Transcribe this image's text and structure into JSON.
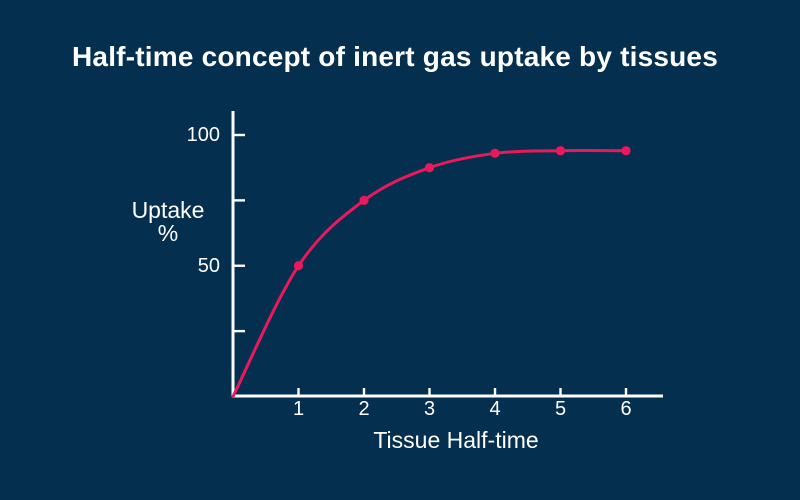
{
  "colors": {
    "background": "#052f4e",
    "curve": "#e9195b",
    "axis": "#fbfdfe",
    "text": "#ffffff"
  },
  "chart_data": {
    "type": "line",
    "title": "Half-time concept of inert gas uptake by tissues",
    "xlabel": "Tissue Half-time",
    "ylabel": "Uptake %",
    "ylabel_lines": [
      "Uptake",
      "%"
    ],
    "x": [
      0,
      1,
      2,
      3,
      4,
      5,
      6
    ],
    "values": [
      0,
      50,
      75,
      87.5,
      93,
      94,
      94
    ],
    "series": [
      {
        "name": "Inert gas uptake",
        "x": [
          0,
          1,
          2,
          3,
          4,
          5,
          6
        ],
        "values": [
          0,
          50,
          75,
          87.5,
          93,
          94,
          94
        ]
      }
    ],
    "x_ticks": [
      "1",
      "2",
      "3",
      "4",
      "5",
      "6"
    ],
    "y_ticks": [
      25,
      50,
      75,
      100
    ],
    "y_tick_labels": [
      "",
      "50",
      "",
      "100"
    ],
    "xlim": [
      0,
      6.6
    ],
    "ylim": [
      0,
      109
    ],
    "grid": false,
    "legend": "none",
    "marker": "circle",
    "markers_at": [
      1,
      2,
      3,
      4,
      5,
      6
    ]
  }
}
